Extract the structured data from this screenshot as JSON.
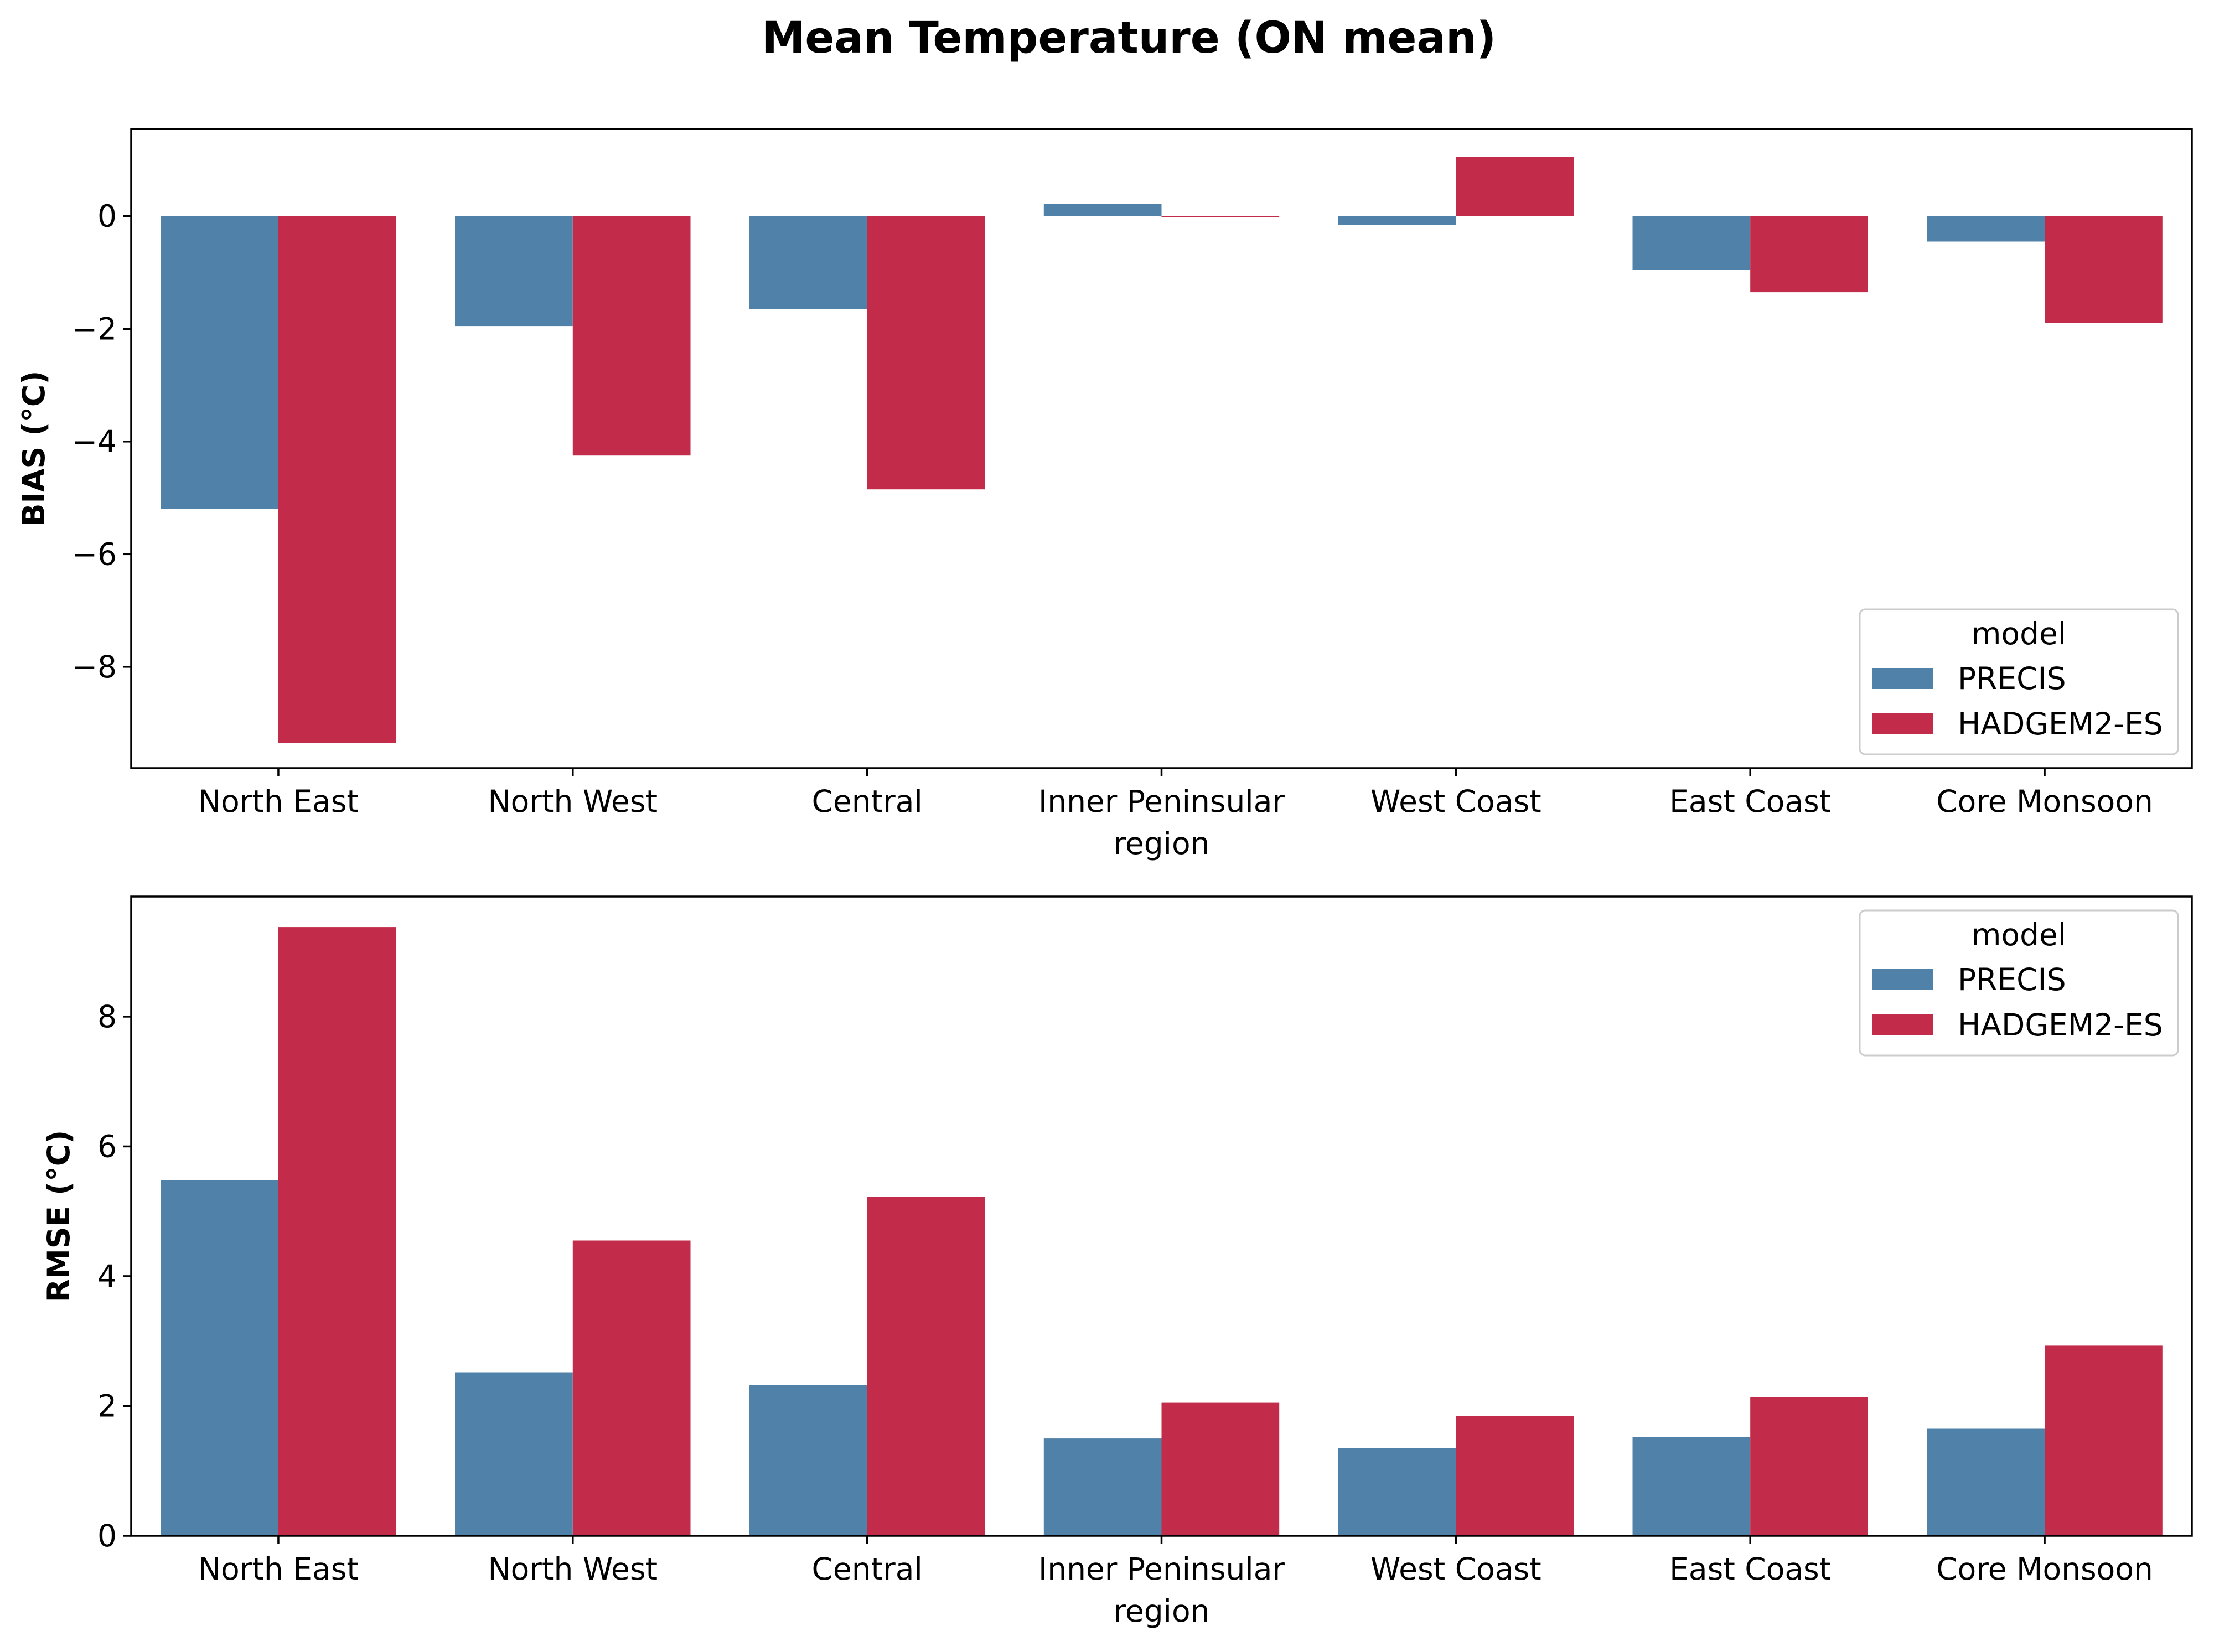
{
  "title": "Mean Temperature (ON mean)",
  "colors": {
    "PRECIS": "#5081a9",
    "HADGEM2-ES": "#c32b4a"
  },
  "chart_data": [
    {
      "type": "bar",
      "ylabel": "BIAS ($^\\circ$C)",
      "ylabel_display": "BIAS (°C)",
      "xlabel": "region",
      "categories": [
        "North East",
        "North West",
        "Central",
        "Inner Peninsular",
        "West Coast",
        "East Coast",
        "Core Monsoon"
      ],
      "series": [
        {
          "name": "PRECIS",
          "values": [
            -5.2,
            -1.95,
            -1.65,
            0.22,
            -0.15,
            -0.95,
            -0.45
          ]
        },
        {
          "name": "HADGEM2-ES",
          "values": [
            -9.35,
            -4.25,
            -4.85,
            -0.02,
            1.05,
            -1.35,
            -1.9
          ]
        }
      ],
      "ylim": [
        -9.8,
        1.55
      ],
      "yticks": [
        0,
        -2,
        -4,
        -6,
        -8
      ],
      "ytick_labels": [
        "0",
        "−2",
        "−4",
        "−6",
        "−8"
      ],
      "legend": {
        "title": "model",
        "location": "lower-right"
      },
      "grid": false
    },
    {
      "type": "bar",
      "ylabel": "RMSE ($^\\circ$C)",
      "ylabel_display": "RMSE (°C)",
      "xlabel": "region",
      "categories": [
        "North East",
        "North West",
        "Central",
        "Inner Peninsular",
        "West Coast",
        "East Coast",
        "Core Monsoon"
      ],
      "series": [
        {
          "name": "PRECIS",
          "values": [
            5.48,
            2.52,
            2.32,
            1.5,
            1.35,
            1.52,
            1.65
          ]
        },
        {
          "name": "HADGEM2-ES",
          "values": [
            9.38,
            4.55,
            5.22,
            2.05,
            1.85,
            2.14,
            2.93
          ]
        }
      ],
      "ylim": [
        0,
        9.85
      ],
      "yticks": [
        0,
        2,
        4,
        6,
        8
      ],
      "ytick_labels": [
        "0",
        "2",
        "4",
        "6",
        "8"
      ],
      "legend": {
        "title": "model",
        "location": "upper-right"
      },
      "grid": false
    }
  ]
}
